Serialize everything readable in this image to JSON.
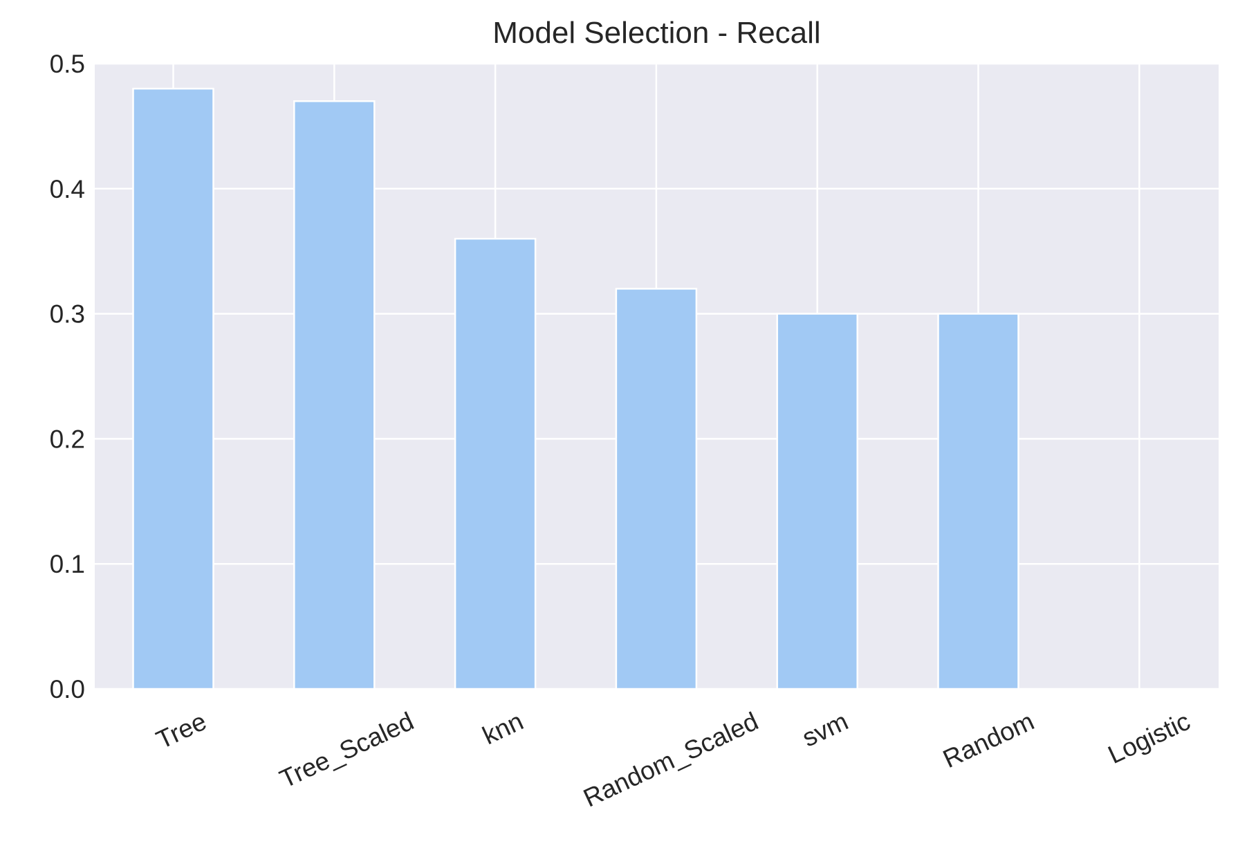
{
  "chart_data": {
    "type": "bar",
    "title": "Model Selection - Recall",
    "xlabel": "",
    "ylabel": "",
    "categories": [
      "Tree",
      "Tree_Scaled",
      "knn",
      "Random_Scaled",
      "svm",
      "Random",
      "Logistic"
    ],
    "values": [
      0.48,
      0.47,
      0.36,
      0.32,
      0.3,
      0.3,
      0.0
    ],
    "ylim": [
      0,
      0.5
    ],
    "yticks": [
      "0.0",
      "0.1",
      "0.2",
      "0.3",
      "0.4",
      "0.5"
    ],
    "grid": true,
    "legend": "none",
    "x_tick_rotation_deg": 25,
    "colors": {
      "bar": "#a1c9f4",
      "plot_background": "#eaeaf2",
      "grid": "#ffffff",
      "text": "#262626"
    }
  }
}
